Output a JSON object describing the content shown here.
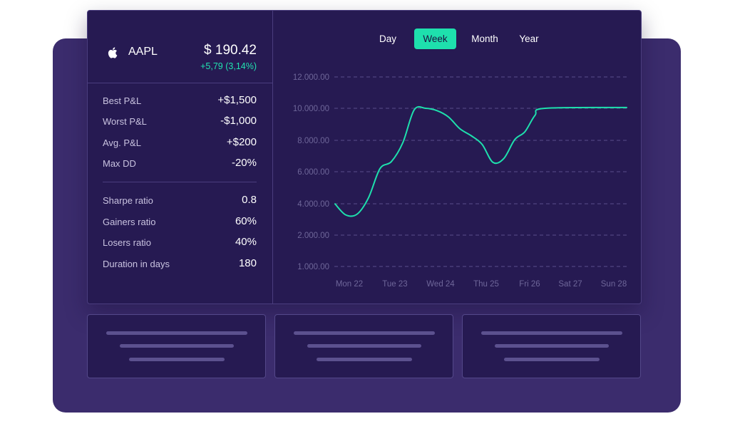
{
  "ticker": {
    "icon": "apple-icon",
    "symbol": "AAPL",
    "price": "$ 190.42",
    "change": "+5,79 (3,14%)"
  },
  "stats_group_1": [
    {
      "label": "Best P&L",
      "value": "+$1,500"
    },
    {
      "label": "Worst P&L",
      "value": "-$1,000"
    },
    {
      "label": "Avg. P&L",
      "value": "+$200"
    },
    {
      "label": "Max DD",
      "value": "-20%"
    }
  ],
  "stats_group_2": [
    {
      "label": "Sharpe ratio",
      "value": "0.8"
    },
    {
      "label": "Gainers ratio",
      "value": "60%"
    },
    {
      "label": "Losers ratio",
      "value": "40%"
    },
    {
      "label": "Duration in days",
      "value": "180"
    }
  ],
  "tabs": [
    {
      "label": "Day",
      "active": false
    },
    {
      "label": "Week",
      "active": true
    },
    {
      "label": "Month",
      "active": false
    },
    {
      "label": "Year",
      "active": false
    }
  ],
  "colors": {
    "accent": "#1ee0ad",
    "panel": "#261a52",
    "backdrop": "#3b2c6d"
  },
  "chart_data": {
    "type": "line",
    "x": [
      "Mon 22",
      "Tue 23",
      "Wed 24",
      "Thu 25",
      "Fri 26",
      "Sat 27",
      "Sun 28"
    ],
    "y_ticks": [
      "12.000.00",
      "10.000.00",
      "8.000.00",
      "6.000.00",
      "4.000.00",
      "2.000.00",
      "1.000.00"
    ],
    "grid": true,
    "series": [
      {
        "points": [
          [
            0,
            3900
          ],
          [
            0.25,
            3200
          ],
          [
            0.5,
            3250
          ],
          [
            0.75,
            4300
          ],
          [
            1.0,
            6150
          ],
          [
            1.25,
            6600
          ],
          [
            1.5,
            7800
          ],
          [
            1.75,
            9900
          ],
          [
            2.0,
            10000
          ],
          [
            2.25,
            9850
          ],
          [
            2.5,
            9450
          ],
          [
            2.75,
            8700
          ],
          [
            3.0,
            8250
          ],
          [
            3.25,
            7700
          ],
          [
            3.5,
            6550
          ],
          [
            3.75,
            6800
          ],
          [
            4.0,
            8000
          ],
          [
            4.25,
            8500
          ],
          [
            4.5,
            9550
          ],
          [
            4.75,
            10000
          ],
          [
            5.0,
            10050
          ]
        ]
      }
    ]
  }
}
